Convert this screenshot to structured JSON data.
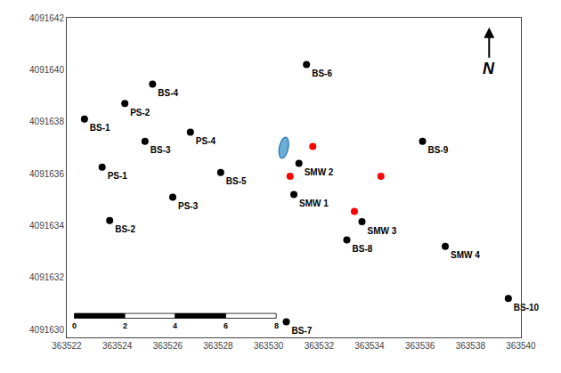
{
  "chart_data": {
    "type": "scatter",
    "xlim": [
      363522,
      363540
    ],
    "ylim": [
      4091629.7,
      4091642
    ],
    "xticks": [
      363522,
      363524,
      363526,
      363528,
      363530,
      363532,
      363534,
      363536,
      363538,
      363540
    ],
    "yticks": [
      4091630,
      4091632,
      4091634,
      4091636,
      4091638,
      4091640,
      4091642
    ],
    "grid": false,
    "series": [
      {
        "color": "black",
        "x": [
          363522.7,
          363524.3,
          363525.4,
          363531.5,
          363525.1,
          363526.9,
          363523.4,
          363528.1,
          363526.2,
          363523.7,
          363536.1,
          363531.2,
          363531.0,
          363533.7,
          363533.1,
          363537.0,
          363539.5,
          363530.7
        ],
        "y": [
          4091638.1,
          4091638.7,
          4091639.45,
          4091640.2,
          4091637.25,
          4091637.6,
          4091636.25,
          4091636.05,
          4091635.1,
          4091634.2,
          4091637.25,
          4091636.4,
          4091635.2,
          4091634.15,
          4091633.45,
          4091633.2,
          4091631.2,
          4091630.3
        ],
        "labels": [
          "BS-1",
          "PS-2",
          "BS-4",
          "BS-6",
          "BS-3",
          "PS-4",
          "PS-1",
          "BS-5",
          "PS-3",
          "BS-2",
          "BS-9",
          "SMW 2",
          "SMW 1",
          "SMW 3",
          "BS-8",
          "SMW 4",
          "BS-10",
          "BS-7"
        ]
      },
      {
        "color": "red",
        "x": [
          363531.75,
          363530.85,
          363534.45,
          363533.4
        ],
        "y": [
          4091637.05,
          4091635.9,
          4091635.9,
          4091634.55
        ]
      }
    ],
    "ellipse": {
      "x": 363530.6,
      "y": 4091637.0,
      "width": 0.35,
      "height": 0.82,
      "angle": -12,
      "color": "#6baed6",
      "edge_color": "#2171b5"
    },
    "scalebar": {
      "positions": [
        363522.3,
        363524.3,
        363526.3,
        363528.3,
        363530.3
      ],
      "ticks": [
        0,
        2,
        4,
        6,
        8
      ]
    },
    "north_label": "N"
  }
}
